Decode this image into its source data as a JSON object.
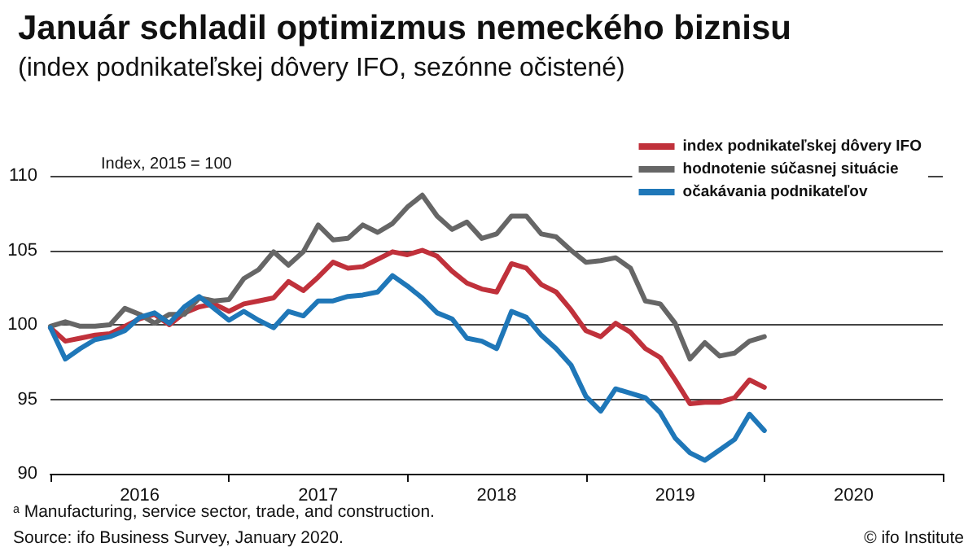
{
  "chart_data": {
    "type": "line",
    "title": "Január schladil optimizmus nemeckého biznisu",
    "subtitle": "(index podnikateľskej dôvery IFO, sezónne očistené)",
    "categories": [
      null,
      null,
      null,
      null,
      null,
      null,
      "2016",
      null,
      null,
      null,
      null,
      null,
      null,
      null,
      null,
      null,
      null,
      null,
      "2017",
      null,
      null,
      null,
      null,
      null,
      null,
      null,
      null,
      null,
      null,
      null,
      "2018",
      null,
      null,
      null,
      null,
      null,
      null,
      null,
      null,
      null,
      null,
      null,
      "2019",
      null,
      null,
      null,
      null,
      null,
      null,
      null,
      null,
      null,
      null,
      null,
      "2020",
      null,
      null,
      null,
      null,
      null,
      null
    ],
    "series": [
      {
        "name": "index podnikateľskej dôvery IFO",
        "color": "#c0313b",
        "values": [
          99.8,
          98.9,
          99.1,
          99.3,
          99.4,
          99.9,
          100.4,
          100.7,
          100.0,
          100.8,
          101.2,
          101.4,
          100.9,
          101.4,
          101.6,
          101.8,
          102.9,
          102.3,
          103.2,
          104.2,
          103.8,
          103.9,
          104.4,
          104.9,
          104.7,
          105.0,
          104.6,
          103.6,
          102.8,
          102.4,
          102.2,
          104.1,
          103.8,
          102.7,
          102.2,
          101.0,
          99.6,
          99.2,
          100.1,
          99.5,
          98.4,
          97.8,
          96.3,
          94.7,
          94.8,
          94.8,
          95.1,
          96.3,
          95.8,
          null,
          null,
          null,
          null,
          null,
          null,
          null,
          null,
          null,
          null,
          null,
          null
        ]
      },
      {
        "name": "hodnotenie súčasnej situácie",
        "color": "#666666",
        "values": [
          99.9,
          100.2,
          99.9,
          99.9,
          100.0,
          101.1,
          100.7,
          100.1,
          100.7,
          100.7,
          101.8,
          101.6,
          101.7,
          103.1,
          103.7,
          104.9,
          104.0,
          104.9,
          106.7,
          105.7,
          105.8,
          106.7,
          106.2,
          106.8,
          107.9,
          108.7,
          107.3,
          106.4,
          106.9,
          105.8,
          106.1,
          107.3,
          107.3,
          106.1,
          105.9,
          105.0,
          104.2,
          104.3,
          104.5,
          103.8,
          101.6,
          101.4,
          100.1,
          97.7,
          98.8,
          97.9,
          98.1,
          98.9,
          99.2,
          null,
          null,
          null,
          null,
          null,
          null,
          null,
          null,
          null,
          null,
          null,
          null
        ]
      },
      {
        "name": "očakávania podnikateľov",
        "color": "#1f77b8",
        "values": [
          99.8,
          97.7,
          98.4,
          99.0,
          99.2,
          99.6,
          100.5,
          100.8,
          100.1,
          101.2,
          101.9,
          101.1,
          100.3,
          100.9,
          100.3,
          99.8,
          100.9,
          100.6,
          101.6,
          101.6,
          101.9,
          102.0,
          102.2,
          103.3,
          102.6,
          101.8,
          100.8,
          100.4,
          99.1,
          98.9,
          98.4,
          100.9,
          100.5,
          99.3,
          98.4,
          97.3,
          95.2,
          94.2,
          95.7,
          95.4,
          95.1,
          94.1,
          92.4,
          91.4,
          90.9,
          91.6,
          92.3,
          94.0,
          92.9,
          null,
          null,
          null,
          null,
          null,
          null,
          null,
          null,
          null,
          null,
          null,
          null
        ]
      }
    ],
    "ylim": [
      90,
      110
    ],
    "yticks": [
      90,
      95,
      100,
      105,
      110
    ],
    "grid": "y",
    "legend": "top right",
    "marker": "none",
    "line_style": "solid",
    "annotations": [
      "Index, 2015 = 100",
      "ᵃ Manufacturing, service sector, trade, and construction.",
      "Source: ifo Business Survey, January 2020.",
      "© ifo Institute"
    ]
  }
}
